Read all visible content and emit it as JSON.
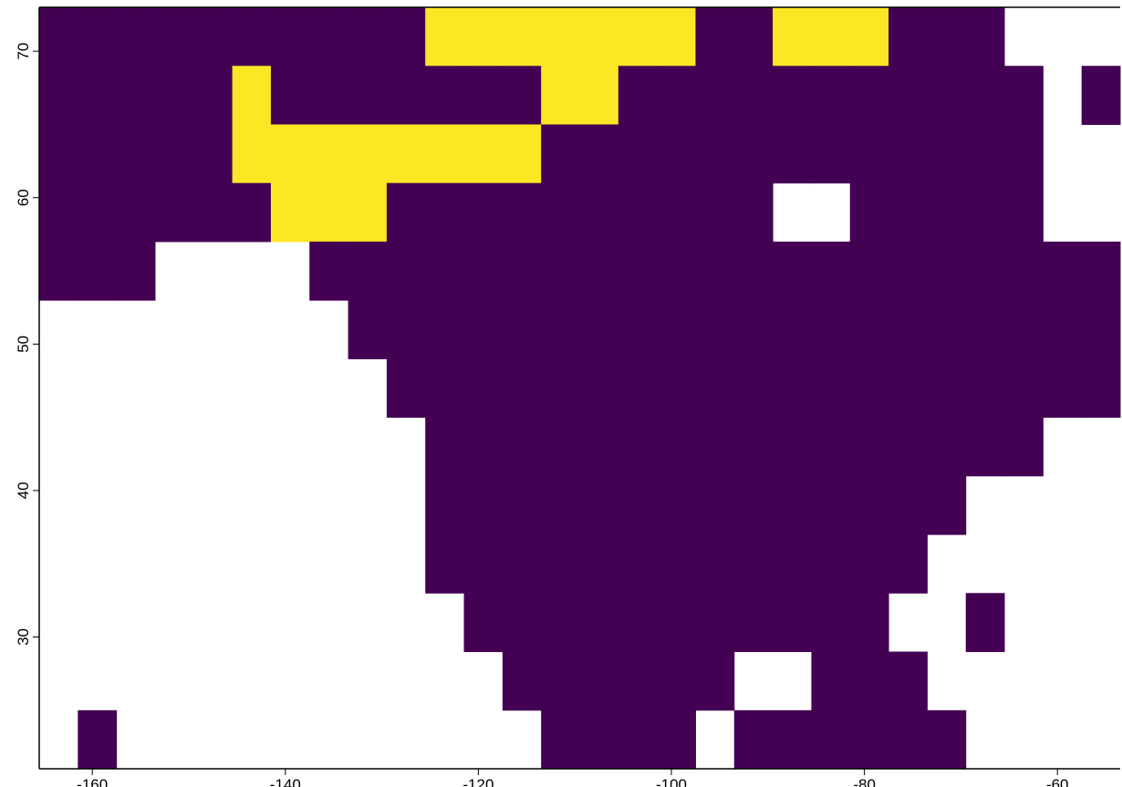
{
  "chart_data": {
    "type": "heatmap",
    "x": [
      -163.5,
      -159.5,
      -155.5,
      -151.5,
      -147.5,
      -143.5,
      -139.5,
      -135.5,
      -131.5,
      -127.5,
      -123.5,
      -119.5,
      -115.5,
      -111.5,
      -107.5,
      -103.5,
      -99.5,
      -95.5,
      -91.5,
      -87.5,
      -83.5,
      -79.5,
      -75.5,
      -71.5,
      -67.5,
      -63.5,
      -59.5,
      -55.5
    ],
    "y": [
      71,
      67,
      63,
      59,
      55,
      51,
      47,
      43,
      39,
      35,
      31,
      27,
      23
    ],
    "z": [
      [
        0,
        0,
        0,
        0,
        0,
        0,
        0,
        0,
        0,
        0,
        1,
        1,
        1,
        1,
        1,
        1,
        1,
        0,
        0,
        1,
        1,
        1,
        0,
        0,
        0,
        null,
        null,
        null
      ],
      [
        0,
        0,
        0,
        0,
        0,
        1,
        0,
        0,
        0,
        0,
        0,
        0,
        0,
        1,
        1,
        0,
        0,
        0,
        0,
        0,
        0,
        0,
        0,
        0,
        0,
        0,
        null,
        0
      ],
      [
        0,
        0,
        0,
        0,
        0,
        1,
        1,
        1,
        1,
        1,
        1,
        1,
        1,
        0,
        0,
        0,
        0,
        0,
        0,
        0,
        0,
        0,
        0,
        0,
        0,
        0,
        null,
        null
      ],
      [
        0,
        0,
        0,
        0,
        0,
        0,
        1,
        1,
        1,
        0,
        0,
        0,
        0,
        0,
        0,
        0,
        0,
        0,
        0,
        null,
        null,
        0,
        0,
        0,
        0,
        0,
        null,
        null
      ],
      [
        0,
        0,
        0,
        null,
        null,
        null,
        null,
        0,
        0,
        0,
        0,
        0,
        0,
        0,
        0,
        0,
        0,
        0,
        0,
        0,
        0,
        0,
        0,
        0,
        0,
        0,
        0,
        0
      ],
      [
        null,
        null,
        null,
        null,
        null,
        null,
        null,
        null,
        0,
        0,
        0,
        0,
        0,
        0,
        0,
        0,
        0,
        0,
        0,
        0,
        0,
        0,
        0,
        0,
        0,
        0,
        0,
        0
      ],
      [
        null,
        null,
        null,
        null,
        null,
        null,
        null,
        null,
        null,
        0,
        0,
        0,
        0,
        0,
        0,
        0,
        0,
        0,
        0,
        0,
        0,
        0,
        0,
        0,
        0,
        0,
        0,
        0
      ],
      [
        null,
        null,
        null,
        null,
        null,
        null,
        null,
        null,
        null,
        null,
        0,
        0,
        0,
        0,
        0,
        0,
        0,
        0,
        0,
        0,
        0,
        0,
        0,
        0,
        0,
        0,
        null,
        null
      ],
      [
        null,
        null,
        null,
        null,
        null,
        null,
        null,
        null,
        null,
        null,
        0,
        0,
        0,
        0,
        0,
        0,
        0,
        0,
        0,
        0,
        0,
        0,
        0,
        0,
        null,
        null,
        null,
        null
      ],
      [
        null,
        null,
        null,
        null,
        null,
        null,
        null,
        null,
        null,
        null,
        0,
        0,
        0,
        0,
        0,
        0,
        0,
        0,
        0,
        0,
        0,
        0,
        0,
        null,
        null,
        null,
        null,
        null
      ],
      [
        null,
        null,
        null,
        null,
        null,
        null,
        null,
        null,
        null,
        null,
        null,
        0,
        0,
        0,
        0,
        0,
        0,
        0,
        0,
        0,
        0,
        0,
        null,
        null,
        0,
        null,
        null,
        null
      ],
      [
        null,
        null,
        null,
        null,
        null,
        null,
        null,
        null,
        null,
        null,
        null,
        null,
        0,
        0,
        0,
        0,
        0,
        0,
        null,
        null,
        0,
        0,
        0,
        null,
        null,
        null,
        null,
        null
      ],
      [
        null,
        0,
        null,
        null,
        null,
        null,
        null,
        null,
        null,
        null,
        null,
        null,
        null,
        0,
        0,
        0,
        0,
        null,
        0,
        0,
        0,
        0,
        0,
        0,
        null,
        null,
        null,
        null
      ]
    ],
    "colors": [
      "#440154",
      "#fde725"
    ],
    "xlim": [
      -165.5,
      -53.5
    ],
    "ylim": [
      21,
      73
    ],
    "xticks": [
      -160,
      -140,
      -120,
      -100,
      -80,
      -60
    ],
    "yticks": [
      30,
      40,
      50,
      60,
      70
    ]
  }
}
